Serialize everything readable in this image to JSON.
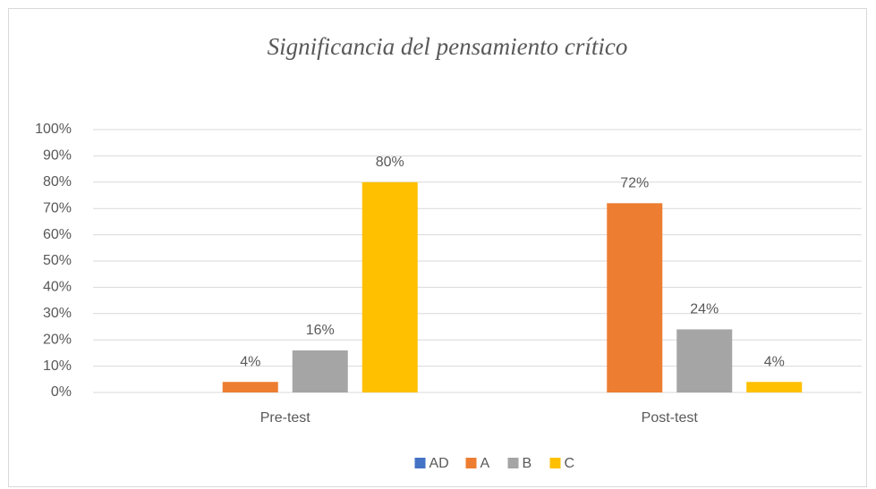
{
  "chart_data": {
    "type": "bar",
    "title": "Significancia del pensamiento crítico",
    "categories": [
      "Pre-test",
      "Post-test"
    ],
    "series": [
      {
        "name": "AD",
        "color": "#4472c4",
        "values": [
          null,
          null
        ]
      },
      {
        "name": "A",
        "color": "#ed7d31",
        "values": [
          4,
          72
        ],
        "value_labels": [
          "4%",
          "72%"
        ]
      },
      {
        "name": "B",
        "color": "#a5a5a5",
        "values": [
          16,
          24
        ],
        "value_labels": [
          "16%",
          "24%"
        ]
      },
      {
        "name": "C",
        "color": "#ffc000",
        "values": [
          80,
          4
        ],
        "value_labels": [
          "80%",
          "4%"
        ]
      }
    ],
    "ylim": [
      0,
      100
    ],
    "yticks": [
      {
        "value": 0,
        "label": "0%"
      },
      {
        "value": 10,
        "label": "10%"
      },
      {
        "value": 20,
        "label": "20%"
      },
      {
        "value": 30,
        "label": "30%"
      },
      {
        "value": 40,
        "label": "40%"
      },
      {
        "value": 50,
        "label": "50%"
      },
      {
        "value": 60,
        "label": "60%"
      },
      {
        "value": 70,
        "label": "70%"
      },
      {
        "value": 80,
        "label": "80%"
      },
      {
        "value": 90,
        "label": "90%"
      },
      {
        "value": 100,
        "label": "100%"
      }
    ],
    "grid": true,
    "legend": "bottom"
  }
}
